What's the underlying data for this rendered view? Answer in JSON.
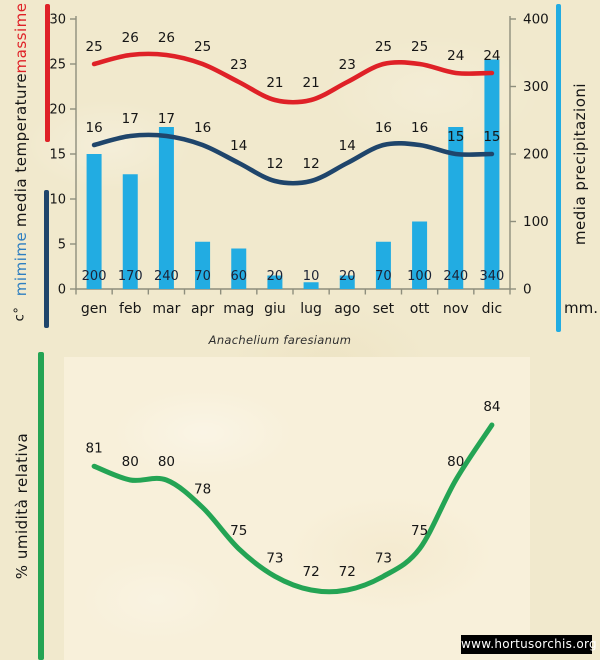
{
  "page": {
    "species_title": "Anachelium faresianum",
    "watermark": "www.hortusorchis.org"
  },
  "colors": {
    "background": "#f1e9cd",
    "panel": "#f8f0da",
    "red": "#df2127",
    "navy": "#1f456b",
    "light_blue_text": "#2e7fc1",
    "cyan": "#22ace2",
    "green": "#24a454",
    "axis": "#8e8e7d",
    "text": "#161616",
    "bar_label_text": "#1c2336",
    "watermark_bg": "#000000",
    "watermark_text": "#ffffff"
  },
  "top_chart": {
    "left_axis_labels": {
      "massime": "massime",
      "media_temperature": "media temperature",
      "mimime": "mimime",
      "unit": "c°"
    },
    "right_axis_title": "media precipitazioni",
    "right_axis_unit": "mm."
  },
  "bottom_chart": {
    "y_axis_title": "% umidità relativa"
  },
  "chart_data": [
    {
      "type": "bar",
      "subtype": "combo bar + smooth lines",
      "categories": [
        "gen",
        "feb",
        "mar",
        "apr",
        "mag",
        "giu",
        "lug",
        "ago",
        "set",
        "ott",
        "nov",
        "dic"
      ],
      "series": [
        {
          "name": "massime",
          "chart": "line",
          "axis": "left",
          "color": "#df2127",
          "values": [
            25,
            26,
            26,
            25,
            23,
            21,
            21,
            23,
            25,
            25,
            24,
            24
          ]
        },
        {
          "name": "mimime",
          "chart": "line",
          "axis": "left",
          "color": "#1f456b",
          "values": [
            16,
            17,
            17,
            16,
            14,
            12,
            12,
            14,
            16,
            16,
            15,
            15
          ]
        },
        {
          "name": "media precipitazioni",
          "chart": "bar",
          "axis": "right",
          "color": "#22ace2",
          "values": [
            200,
            170,
            240,
            70,
            60,
            20,
            10,
            20,
            70,
            100,
            240,
            340
          ]
        }
      ],
      "left_axis": {
        "title": "media temperature",
        "unit": "c°",
        "min": 0,
        "max": 30,
        "step": 5
      },
      "right_axis": {
        "title": "media precipitazioni",
        "unit": "mm.",
        "min": 0,
        "max": 400,
        "step": 100
      },
      "data_labels": true,
      "grid": false,
      "legend_position": "left-rail (massime red / mimime blue)"
    },
    {
      "type": "line",
      "subtype": "smooth line, 12 monthly points, axes unlabeled",
      "series": [
        {
          "name": "% umidità relativa",
          "color": "#24a454",
          "values": [
            81,
            80,
            80,
            78,
            75,
            73,
            72,
            72,
            73,
            75,
            80,
            84
          ]
        }
      ],
      "ylabel": "% umidità relativa",
      "ylim_estimated": [
        70,
        86
      ],
      "data_labels": true,
      "grid": false
    }
  ]
}
